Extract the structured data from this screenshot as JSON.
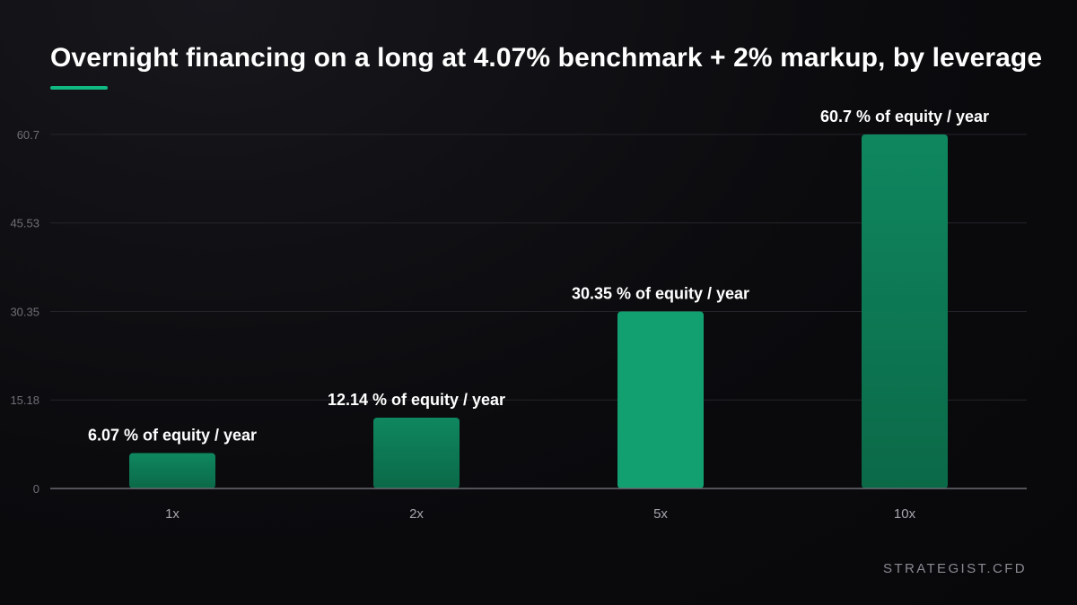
{
  "colors": {
    "accent": "#10b981",
    "bar_light": "#13a070",
    "bar_mid": "#0f875f",
    "bar_dark": "#0b6948",
    "grid": "#24242a",
    "axis": "#6b6b73",
    "tick_text": "#6e6e76",
    "category_text": "#a5a5ad",
    "label_text": "#ffffff"
  },
  "header": {
    "title": "Overnight financing on a long at 4.07% benchmark + 2% markup, by leverage"
  },
  "footer": {
    "brand": "STRATEGIST.CFD"
  },
  "chart_data": {
    "type": "bar",
    "title": "Overnight financing on a long at 4.07% benchmark + 2% markup, by leverage",
    "xlabel": "",
    "ylabel": "",
    "categories": [
      "1x",
      "2x",
      "5x",
      "10x"
    ],
    "values": [
      6.07,
      12.14,
      30.35,
      60.7
    ],
    "data_labels": [
      "6.07 % of equity / year",
      "12.14 % of equity / year",
      "30.35 % of equity / year",
      "60.7 % of equity / year"
    ],
    "yticks": [
      "0",
      "15.18",
      "30.35",
      "45.53",
      "60.7"
    ],
    "ytick_values": [
      0,
      15.18,
      30.35,
      45.53,
      60.7
    ],
    "ylim": [
      0,
      60.7
    ],
    "grid": true,
    "legend": "none",
    "highlight_index": 2
  }
}
